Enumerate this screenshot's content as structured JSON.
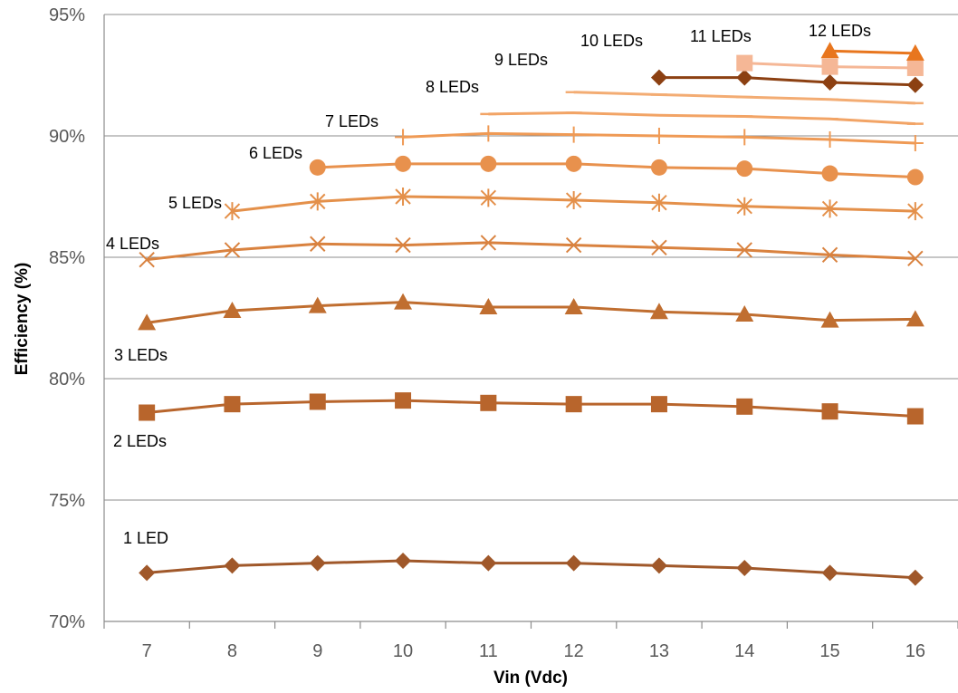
{
  "chart_data": {
    "type": "line",
    "xlabel": "Vin (Vdc)",
    "ylabel": "Efficiency (%)",
    "x": [
      7,
      8,
      9,
      10,
      11,
      12,
      13,
      14,
      15,
      16
    ],
    "xlim": [
      6.5,
      16.5
    ],
    "ylim": [
      70,
      95
    ],
    "y_tick_values": [
      70,
      75,
      80,
      85,
      90,
      95
    ],
    "y_tick_labels": [
      "70%",
      "75%",
      "80%",
      "85%",
      "90%",
      "95%"
    ],
    "x_tick_labels": [
      "7",
      "8",
      "9",
      "10",
      "11",
      "12",
      "13",
      "14",
      "15",
      "16"
    ],
    "grid": "horizontal",
    "legend": "none",
    "series": [
      {
        "name": "1 LED",
        "color": "#a0582a",
        "marker": "diamond",
        "x": [
          7,
          8,
          9,
          10,
          11,
          12,
          13,
          14,
          15,
          16
        ],
        "values": [
          72.0,
          72.3,
          72.4,
          72.5,
          72.4,
          72.4,
          72.3,
          72.2,
          72.0,
          71.8
        ]
      },
      {
        "name": "2 LEDs",
        "color": "#b8652c",
        "marker": "square",
        "x": [
          7,
          8,
          9,
          10,
          11,
          12,
          13,
          14,
          15,
          16
        ],
        "values": [
          78.6,
          78.95,
          79.05,
          79.1,
          79.0,
          78.95,
          78.95,
          78.85,
          78.65,
          78.45
        ]
      },
      {
        "name": "3 LEDs",
        "color": "#c06e30",
        "marker": "triangle",
        "x": [
          7,
          8,
          9,
          10,
          11,
          12,
          13,
          14,
          15,
          16
        ],
        "values": [
          82.3,
          82.8,
          83.0,
          83.15,
          82.95,
          82.95,
          82.75,
          82.65,
          82.4,
          82.45
        ]
      },
      {
        "name": "4 LEDs",
        "color": "#d9823f",
        "marker": "x",
        "x": [
          7,
          8,
          9,
          10,
          11,
          12,
          13,
          14,
          15,
          16
        ],
        "values": [
          84.9,
          85.3,
          85.55,
          85.5,
          85.6,
          85.5,
          85.4,
          85.3,
          85.1,
          84.95
        ]
      },
      {
        "name": "5 LEDs",
        "color": "#e4904a",
        "marker": "star",
        "x": [
          8,
          9,
          10,
          11,
          12,
          13,
          14,
          15,
          16
        ],
        "values": [
          86.9,
          87.3,
          87.5,
          87.45,
          87.35,
          87.25,
          87.1,
          87.0,
          86.9
        ]
      },
      {
        "name": "6 LEDs",
        "color": "#e8914d",
        "marker": "circle",
        "x": [
          9,
          10,
          11,
          12,
          13,
          14,
          15,
          16
        ],
        "values": [
          88.7,
          88.85,
          88.85,
          88.85,
          88.7,
          88.65,
          88.45,
          88.3
        ]
      },
      {
        "name": "7 LEDs",
        "color": "#ef9a55",
        "marker": "plus",
        "x": [
          10,
          11,
          12,
          13,
          14,
          15,
          16
        ],
        "values": [
          89.95,
          90.1,
          90.05,
          90.0,
          89.95,
          89.85,
          89.7
        ]
      },
      {
        "name": "8 LEDs",
        "color": "#f2a466",
        "marker": "dash",
        "x": [
          11,
          12,
          13,
          14,
          15,
          16
        ],
        "values": [
          90.9,
          90.95,
          90.85,
          90.8,
          90.7,
          90.5
        ]
      },
      {
        "name": "9 LEDs",
        "color": "#f3ac73",
        "marker": "dash",
        "x": [
          12,
          13,
          14,
          15,
          16
        ],
        "values": [
          91.8,
          91.7,
          91.6,
          91.5,
          91.35
        ]
      },
      {
        "name": "10 LEDs",
        "color": "#8c4012",
        "marker": "diamond",
        "x": [
          13,
          14,
          15,
          16
        ],
        "values": [
          92.4,
          92.4,
          92.2,
          92.1
        ]
      },
      {
        "name": "11 LEDs",
        "color": "#f5b796",
        "marker": "square",
        "x": [
          14,
          15,
          16
        ],
        "values": [
          93.0,
          92.85,
          92.8
        ]
      },
      {
        "name": "12 LEDs",
        "color": "#e8761e",
        "marker": "triangle",
        "x": [
          15,
          16
        ],
        "values": [
          93.5,
          93.4
        ]
      }
    ],
    "series_labels": [
      {
        "text": "1 LED",
        "series": "1 LED"
      },
      {
        "text": "2 LEDs",
        "series": "2 LEDs"
      },
      {
        "text": "3 LEDs",
        "series": "3 LEDs"
      },
      {
        "text": "4 LEDs",
        "series": "4 LEDs"
      },
      {
        "text": "5 LEDs",
        "series": "5 LEDs"
      },
      {
        "text": "6 LEDs",
        "series": "6 LEDs"
      },
      {
        "text": "7 LEDs",
        "series": "7 LEDs"
      },
      {
        "text": "8 LEDs",
        "series": "8 LEDs"
      },
      {
        "text": "9 LEDs",
        "series": "9 LEDs"
      },
      {
        "text": "10 LEDs",
        "series": "10 LEDs"
      },
      {
        "text": "11 LEDs",
        "series": "11 LEDs"
      },
      {
        "text": "12 LEDs",
        "series": "12 LEDs"
      }
    ]
  }
}
